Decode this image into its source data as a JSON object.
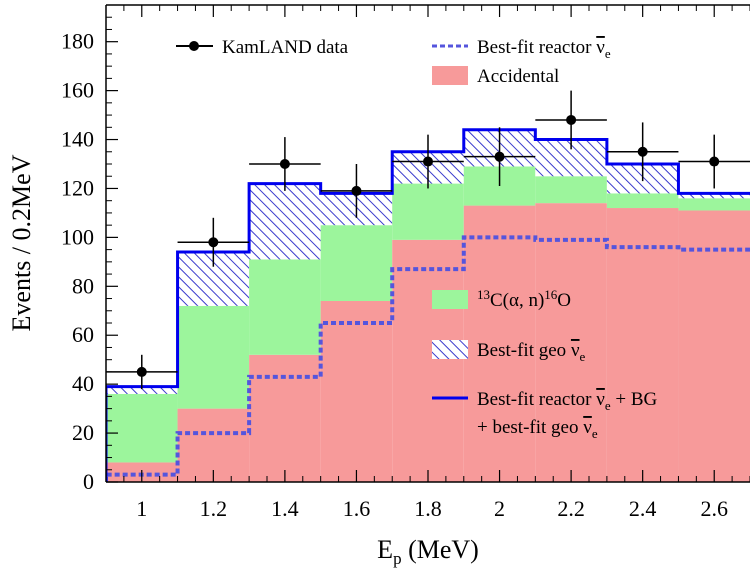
{
  "chart_data": {
    "type": "bar",
    "xlabel": "E",
    "xlabel_sub": "p",
    "xlabel_unit": " (MeV)",
    "ylabel": "Events / 0.2MeV",
    "xlim": [
      0.9,
      2.7
    ],
    "ylim": [
      0,
      195
    ],
    "x_ticks": [
      1,
      1.2,
      1.4,
      1.6,
      1.8,
      2,
      2.2,
      2.4,
      2.6
    ],
    "x_tick_labels": [
      "1",
      "1.2",
      "1.4",
      "1.6",
      "1.8",
      "2",
      "2.2",
      "2.4",
      "2.6"
    ],
    "y_ticks": [
      0,
      20,
      40,
      60,
      80,
      100,
      120,
      140,
      160,
      180
    ],
    "y_tick_labels": [
      "0",
      "20",
      "40",
      "60",
      "80",
      "100",
      "120",
      "140",
      "160",
      "180"
    ],
    "bin_edges": [
      0.9,
      1.1,
      1.3,
      1.5,
      1.7,
      1.9,
      2.1,
      2.3,
      2.5,
      2.7
    ],
    "series": [
      {
        "key": "reactor",
        "values": [
          3,
          20,
          43,
          65,
          87,
          100,
          99,
          96,
          95
        ]
      },
      {
        "key": "accidental",
        "values": [
          8,
          30,
          52,
          74,
          99,
          113,
          114,
          112,
          111
        ]
      },
      {
        "key": "c13",
        "values": [
          36,
          72,
          91,
          105,
          122,
          129,
          125,
          118,
          116
        ]
      },
      {
        "key": "geo",
        "values": [
          38,
          93,
          121,
          117,
          133,
          143,
          139,
          129,
          117
        ]
      },
      {
        "key": "total",
        "values": [
          39,
          94,
          122,
          118,
          135,
          144,
          140,
          130,
          118
        ]
      }
    ],
    "data_points": [
      {
        "x": 1.0,
        "y": 45,
        "xerr": 0.1,
        "yerr": 7
      },
      {
        "x": 1.2,
        "y": 98,
        "xerr": 0.1,
        "yerr": 10
      },
      {
        "x": 1.4,
        "y": 130,
        "xerr": 0.1,
        "yerr": 11
      },
      {
        "x": 1.6,
        "y": 119,
        "xerr": 0.1,
        "yerr": 11
      },
      {
        "x": 1.8,
        "y": 131,
        "xerr": 0.1,
        "yerr": 11
      },
      {
        "x": 2.0,
        "y": 133,
        "xerr": 0.1,
        "yerr": 12
      },
      {
        "x": 2.2,
        "y": 148,
        "xerr": 0.1,
        "yerr": 12
      },
      {
        "x": 2.4,
        "y": 135,
        "xerr": 0.1,
        "yerr": 12
      },
      {
        "x": 2.6,
        "y": 131,
        "xerr": 0.1,
        "yerr": 11
      }
    ],
    "legend": {
      "kamland": "KamLAND data",
      "reactor_prefix": "Best-fit reactor ",
      "accidental": "Accidental",
      "c13_sup1": "13",
      "c13_mid": "C(α, n)",
      "c13_sup2": "16",
      "c13_end": "O",
      "geo_prefix": "Best-fit geo ",
      "total_line1_prefix": "Best-fit reactor ",
      "total_line1_suffix": " + BG",
      "total_line2_prefix": "+ best-fit geo ",
      "nu": "ν",
      "nu_sub": "e"
    },
    "colors": {
      "reactor": "#5555dd",
      "accidental": "#f79a9a",
      "c13": "#9cf59c",
      "geo": "#3a3acc",
      "total": "#0000ee",
      "data": "#000000"
    }
  }
}
